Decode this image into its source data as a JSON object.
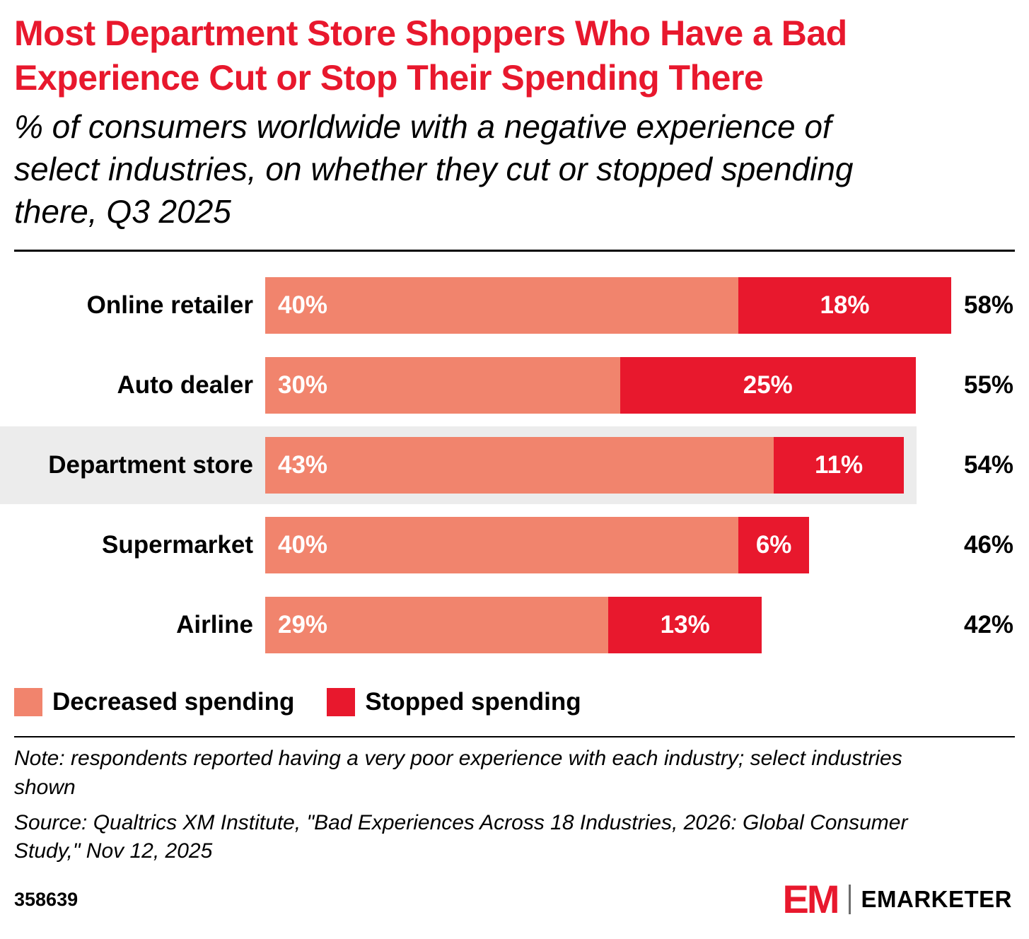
{
  "header": {
    "title": "Most Department Store Shoppers Who Have a Bad Experience Cut or Stop Their Spending There",
    "subtitle": "% of consumers worldwide with a negative experience of select industries, on whether they cut or stopped spending there, Q3 2025"
  },
  "chart_data": {
    "type": "bar",
    "orientation": "horizontal",
    "title": "Most Department Store Shoppers Who Have a Bad Experience Cut or Stop Their Spending There",
    "categories": [
      "Online retailer",
      "Auto dealer",
      "Department store",
      "Supermarket",
      "Airline"
    ],
    "series": [
      {
        "name": "Decreased spending",
        "color": "#f1846d",
        "values": [
          40,
          30,
          43,
          40,
          29
        ]
      },
      {
        "name": "Stopped spending",
        "color": "#e8182d",
        "values": [
          18,
          25,
          11,
          6,
          13
        ]
      }
    ],
    "totals": [
      58,
      55,
      54,
      46,
      42
    ],
    "highlighted_category": "Department store",
    "xlim": [
      0,
      58
    ],
    "value_suffix": "%",
    "grid": false,
    "legend_position": "bottom"
  },
  "legend": [
    {
      "label": "Decreased spending",
      "color": "#f1846d"
    },
    {
      "label": "Stopped spending",
      "color": "#e8182d"
    }
  ],
  "footnote": {
    "note": "Note: respondents reported having a very poor experience with each industry; select industries shown",
    "source": "Source: Qualtrics XM Institute, \"Bad Experiences Across 18 Industries, 2026: Global Consumer Study,\" Nov 12, 2025"
  },
  "footer": {
    "chart_id": "358639",
    "logo_text": "EM",
    "brand": "EMARKETER"
  },
  "colors": {
    "accent_red": "#e8182d",
    "bar_decreased": "#f1846d",
    "bar_stopped": "#e8182d",
    "highlight_band": "#ececec",
    "text": "#000000",
    "background": "#ffffff"
  }
}
